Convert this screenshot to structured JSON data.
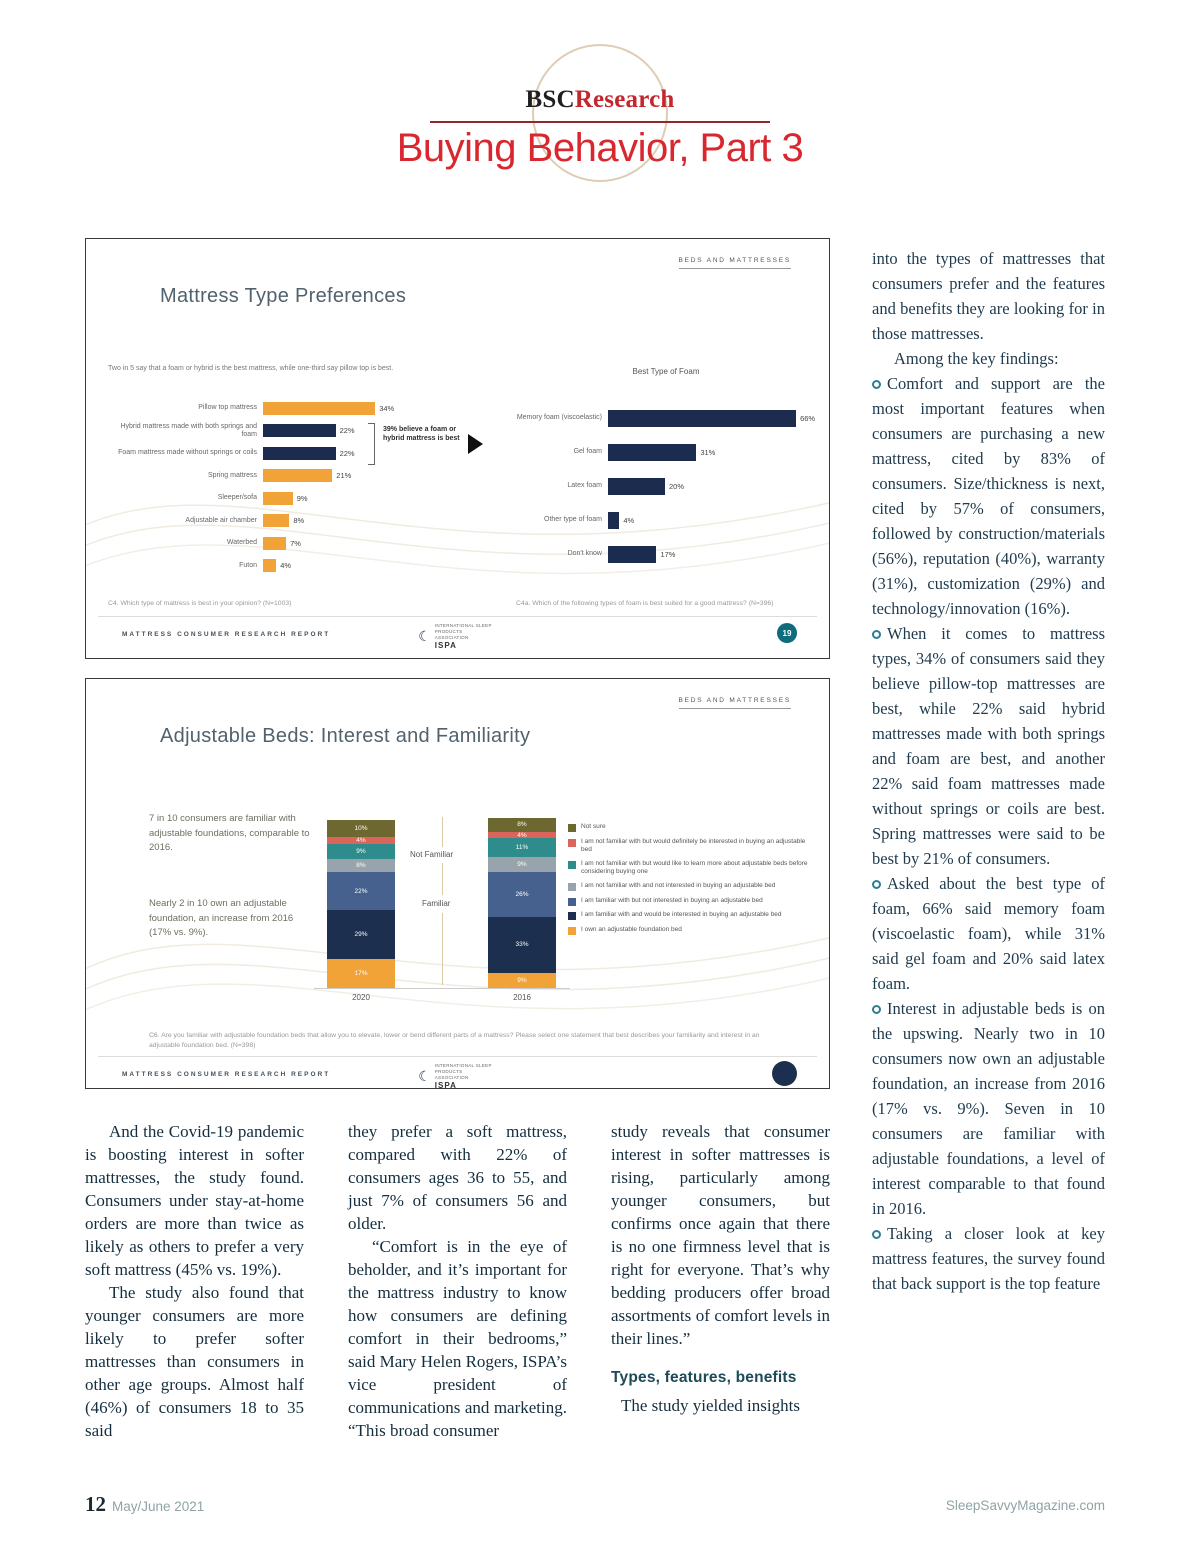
{
  "header": {
    "brand_bsc": "BSC",
    "brand_research": "Research",
    "title": "Buying Behavior, Part 3"
  },
  "slide1": {
    "tag": "BEDS AND MATTRESSES",
    "title": "Mattress Type Preferences",
    "report_label": "MATTRESS CONSUMER RESEARCH REPORT",
    "ispa_org": "INTERNATIONAL SLEEP PRODUCTS ASSOCIATION",
    "ispa_name": "ISPA",
    "page_badge": "19",
    "left_chart": {
      "type": "bar",
      "subtitle": "Two in 5 say that a foam or hybrid is the best mattress, while one-third say pillow top is best.",
      "categories": [
        "Pillow top mattress",
        "Hybrid mattress made with both springs and foam",
        "Foam mattress made without springs or coils",
        "Spring mattress",
        "Sleeper/sofa",
        "Adjustable air chamber",
        "Waterbed",
        "Futon"
      ],
      "values": [
        34,
        22,
        22,
        21,
        9,
        8,
        7,
        4
      ],
      "colors": [
        "#F2A338",
        "#1B2C4E",
        "#1B2C4E",
        "#F2A338",
        "#F2A338",
        "#F2A338",
        "#F2A338",
        "#F2A338"
      ],
      "annotation": "39% believe a foam or hybrid mattress is best",
      "caption": "C4. Which type of mattress is best in your opinion? (N=1003)"
    },
    "right_chart": {
      "type": "bar",
      "title": "Best Type of Foam",
      "categories": [
        "Memory foam (viscoelastic)",
        "Gel foam",
        "Latex foam",
        "Other type of foam",
        "Don't know"
      ],
      "values": [
        66,
        31,
        20,
        4,
        17
      ],
      "color": "#1B2C4E",
      "caption": "C4a. Which of the following types of foam is best suited for a good mattress? (N=396)"
    }
  },
  "slide2": {
    "tag": "BEDS AND MATTRESSES",
    "title": "Adjustable Beds: Interest and Familiarity",
    "note1": "7 in 10 consumers are familiar with adjustable foundations, comparable to 2016.",
    "note2": "Nearly 2 in 10 own an adjustable foundation, an increase from 2016 (17% vs. 9%).",
    "group_labels": {
      "not_familiar": "Not Familiar",
      "familiar": "Familiar"
    },
    "chart": {
      "type": "stacked-bar",
      "categories": [
        "2020",
        "2016"
      ],
      "series": [
        {
          "name": "Not sure",
          "color": "#6C682F",
          "values": [
            10,
            8
          ]
        },
        {
          "name": "I am not familiar with but would definitely be interested in buying an adjustable bed",
          "color": "#D9655B",
          "values": [
            4,
            4
          ]
        },
        {
          "name": "I am not familiar with but would like to learn more about adjustable beds before considering buying one",
          "color": "#2E8C8C",
          "values": [
            9,
            11
          ]
        },
        {
          "name": "I am not familiar with and not interested in buying an adjustable bed",
          "color": "#98A3AB",
          "values": [
            8,
            9
          ]
        },
        {
          "name": "I am familiar with but not interested in buying an adjustable bed",
          "color": "#46618E",
          "values": [
            22,
            26
          ]
        },
        {
          "name": "I am familiar with and would be interested in buying an adjustable bed",
          "color": "#1D2F4E",
          "values": [
            29,
            33
          ]
        },
        {
          "name": "I own an adjustable foundation bed",
          "color": "#F2A338",
          "values": [
            17,
            9
          ]
        }
      ]
    },
    "caption": "C6. Are you familiar with adjustable foundation beds that allow you to elevate, lower or bend different parts of a mattress? Please select one statement that best describes your familiarity and interest in an adjustable foundation bed. (N=398)",
    "report_label": "MATTRESS CONSUMER RESEARCH REPORT",
    "ispa_org": "INTERNATIONAL SLEEP PRODUCTS ASSOCIATION",
    "ispa_name": "ISPA"
  },
  "sidebar": {
    "intro": "into the types of mattresses that consumers prefer and the features and benefits they are looking for in those mattresses.",
    "lead_in": "Among the key findings:",
    "bullets": [
      "Comfort and support are the most important features when consumers are purchasing a new mattress, cited by 83% of consumers. Size/thickness is next, cited by 57% of consumers, followed by construction/materials (56%), reputation (40%), warranty (31%), customization (29%) and technology/innovation (16%).",
      "When it comes to mattress types, 34% of consumers said they believe pillow-top mattresses are best, while 22% said hybrid mattresses made with both springs and foam are best, and another 22% said foam mattresses made without springs or coils are best. Spring mattresses were said to be best by 21% of consumers.",
      "Asked about the best type of foam, 66% said memory foam (viscoelastic foam), while 31% said gel foam and 20% said latex foam.",
      "Interest in adjustable beds is on the upswing. Nearly two in 10 consumers now own an adjustable foundation, an increase from 2016 (17% vs. 9%). Seven in 10 consumers are familiar with adjustable foundations, a level of interest comparable to that found in 2016.",
      "Taking a closer look at key mattress features, the survey found that back support is the top feature"
    ]
  },
  "columns": [
    {
      "paras": [
        "And the Covid-19 pandemic is boosting interest in softer mattresses, the study found. Consumers under stay-at-home orders are more than twice as likely as others to prefer a very soft mattress (45% vs. 19%).",
        "The study also found that younger consumers are more likely to prefer softer mattresses than consumers in other age groups. Almost half (46%) of consumers 18 to 35 said"
      ]
    },
    {
      "paras": [
        "they prefer a soft mattress, compared with 22% of consumers ages 36 to 55, and just 7% of consumers 56 and older.",
        "“Comfort is in the eye of beholder, and it’s important for the mattress industry to know how consumers are defining comfort in their bedrooms,” said Mary Helen Rogers, ISPA’s vice president of communications and marketing. “This broad consumer"
      ]
    },
    {
      "paras": [
        "study reveals that consumer interest in softer mattresses is rising, particularly among younger consumers, but confirms once again that there is no one firmness level that is right for everyone. That’s why bedding producers offer broad assortments of comfort levels in their lines.”"
      ],
      "heading": "Types, features, benefits",
      "after_heading": "The study yielded insights"
    }
  ],
  "footer": {
    "page_number": "12",
    "issue": "May/June 2021",
    "website": "SleepSavvyMagazine.com"
  }
}
